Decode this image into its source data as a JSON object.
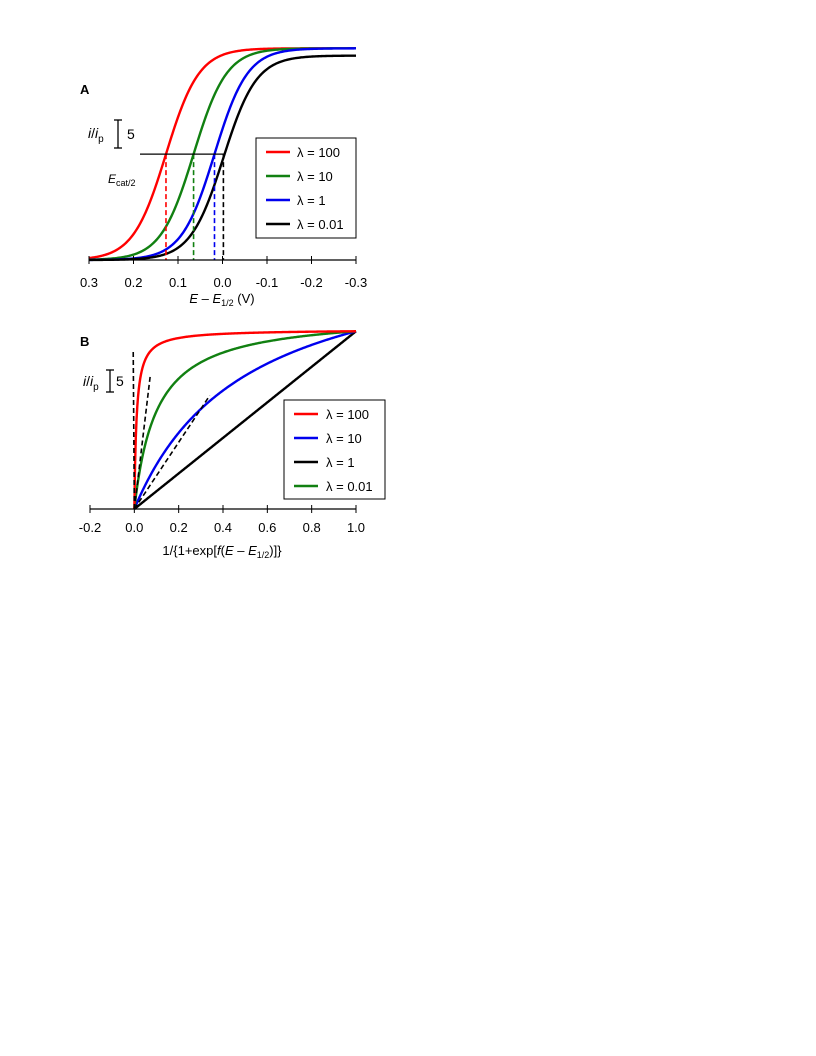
{
  "chart_data": [
    {
      "panel": "A",
      "type": "line",
      "xlabel_parts": {
        "E": "E",
        "minus": " – ",
        "E2": "E",
        "sub": "1/2",
        "unit": " (V)"
      },
      "xlim": [
        0.3,
        -0.3
      ],
      "x_ticks": [
        "0.3",
        "0.2",
        "0.1",
        "0.0",
        "-0.1",
        "-0.2",
        "-0.3"
      ],
      "x_tick_values": [
        0.3,
        0.2,
        0.1,
        0.0,
        -0.1,
        -0.2,
        -0.3
      ],
      "y_scale_bar": {
        "i": "i",
        "slash": "/",
        "ip": "i",
        "p": "p",
        "value": "5"
      },
      "annotation": {
        "E": "E",
        "sub": "cat/2"
      },
      "grid": false,
      "legend_position": "right",
      "series": [
        {
          "name": "λ = 100",
          "color": "#ff0000",
          "plateau": 37.8,
          "e_cat2": 0.127
        },
        {
          "name": "λ = 10",
          "color": "#118011",
          "plateau": 37.8,
          "e_cat2": 0.065
        },
        {
          "name": "λ = 1",
          "color": "#0000ee",
          "plateau": 37.8,
          "e_cat2": 0.018
        },
        {
          "name": "λ = 0.01",
          "color": "#000000",
          "plateau": 36.5,
          "e_cat2": -0.002
        }
      ]
    },
    {
      "panel": "B",
      "type": "line",
      "xlabel_parts": {
        "pre": "1/{1+exp[",
        "f": "f",
        "open": "(",
        "E": "E",
        "minus": " – ",
        "E2": "E",
        "sub": "1/2",
        "close": ")]}"
      },
      "xlim": [
        -0.2,
        1.0
      ],
      "x_ticks": [
        "-0.2",
        "0.0",
        "0.2",
        "0.4",
        "0.6",
        "0.8",
        "1.0"
      ],
      "x_tick_values": [
        -0.2,
        0.0,
        0.2,
        0.4,
        0.6,
        0.8,
        1.0
      ],
      "y_scale_bar": {
        "i": "i",
        "slash": "/",
        "ip": "i",
        "p": "p",
        "value": "5"
      },
      "grid": false,
      "legend_position": "right",
      "series": [
        {
          "name": "λ = 100",
          "color": "#ff0000",
          "y_end": 39.5,
          "k": 0.01
        },
        {
          "name": "λ = 10",
          "color": "#0000ee",
          "y_end": 39.5,
          "k": 0.5
        },
        {
          "name": "λ = 1",
          "color": "#000000",
          "y_end": 39.5,
          "k": 0
        },
        {
          "name": "λ = 0.01",
          "color": "#118011",
          "y_end": 39.5,
          "k": 0.1
        }
      ]
    }
  ]
}
